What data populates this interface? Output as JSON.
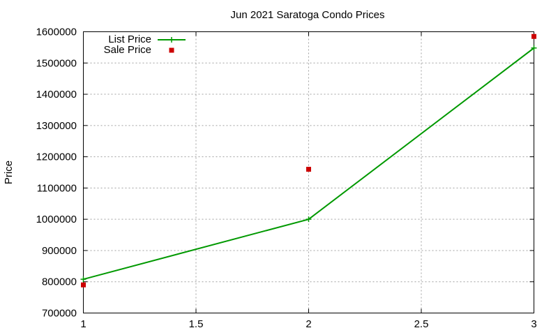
{
  "chart_data": {
    "type": "line",
    "title": "Jun 2021 Saratoga Condo Prices",
    "xlabel": "",
    "ylabel": "Price",
    "xlim": [
      1,
      3
    ],
    "ylim": [
      700000,
      1600000
    ],
    "x_ticks": [
      1,
      1.5,
      2,
      2.5,
      3
    ],
    "y_ticks": [
      700000,
      800000,
      900000,
      1000000,
      1100000,
      1200000,
      1300000,
      1400000,
      1500000,
      1600000
    ],
    "grid": true,
    "legend_position": "top-left",
    "series": [
      {
        "name": "List Price",
        "style": "line-with-plus-markers",
        "color": "#009900",
        "x": [
          1,
          2,
          3
        ],
        "y": [
          808000,
          1000000,
          1548000
        ]
      },
      {
        "name": "Sale Price",
        "style": "square-points",
        "color": "#cc0000",
        "x": [
          1,
          2,
          3
        ],
        "y": [
          790000,
          1160000,
          1585000
        ]
      }
    ]
  }
}
